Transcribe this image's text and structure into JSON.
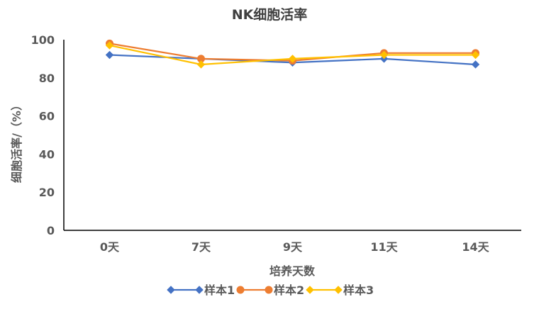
{
  "chart_data": {
    "type": "line",
    "title": "NK细胞活率",
    "xlabel": "培养天数",
    "ylabel": "细胞活率/（%）",
    "categories": [
      "0天",
      "7天",
      "9天",
      "11天",
      "14天"
    ],
    "ylim": [
      0,
      100
    ],
    "yticks": [
      0,
      20,
      40,
      60,
      80,
      100
    ],
    "grid": false,
    "legend_position": "bottom",
    "series": [
      {
        "name": "样本1",
        "values": [
          92,
          90,
          88,
          90,
          87
        ],
        "color": "#4472C4",
        "marker": "diamond"
      },
      {
        "name": "样本2",
        "values": [
          98,
          90,
          89,
          93,
          93
        ],
        "color": "#ED7D31",
        "marker": "circle"
      },
      {
        "name": "样本3",
        "values": [
          97,
          87,
          90,
          92,
          92
        ],
        "color": "#FFC000",
        "marker": "diamond"
      }
    ]
  }
}
